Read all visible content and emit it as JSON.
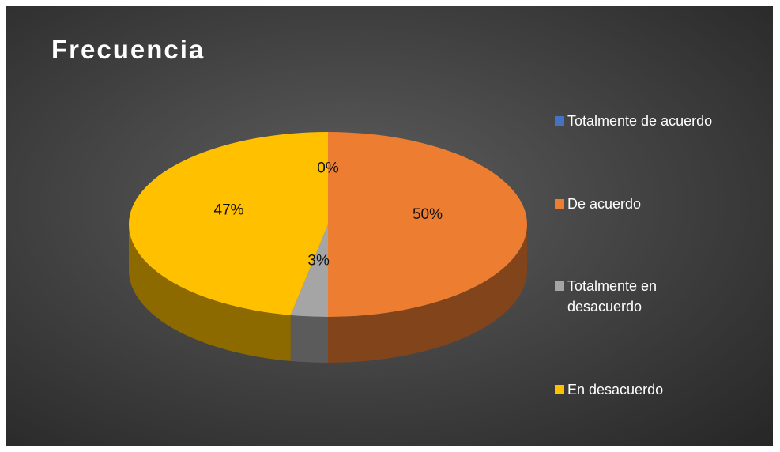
{
  "chart_data": {
    "type": "pie",
    "title": "Frecuencia",
    "categories": [
      "Totalmente de acuerdo",
      "De acuerdo",
      "Totalmente en desacuerdo",
      "En desacuerdo"
    ],
    "values": [
      0,
      50,
      3,
      47
    ],
    "value_labels": [
      "0%",
      "50%",
      "3%",
      "47%"
    ],
    "colors": [
      "#4472c4",
      "#ed7d31",
      "#a5a5a5",
      "#ffc000"
    ],
    "legend": "right"
  }
}
